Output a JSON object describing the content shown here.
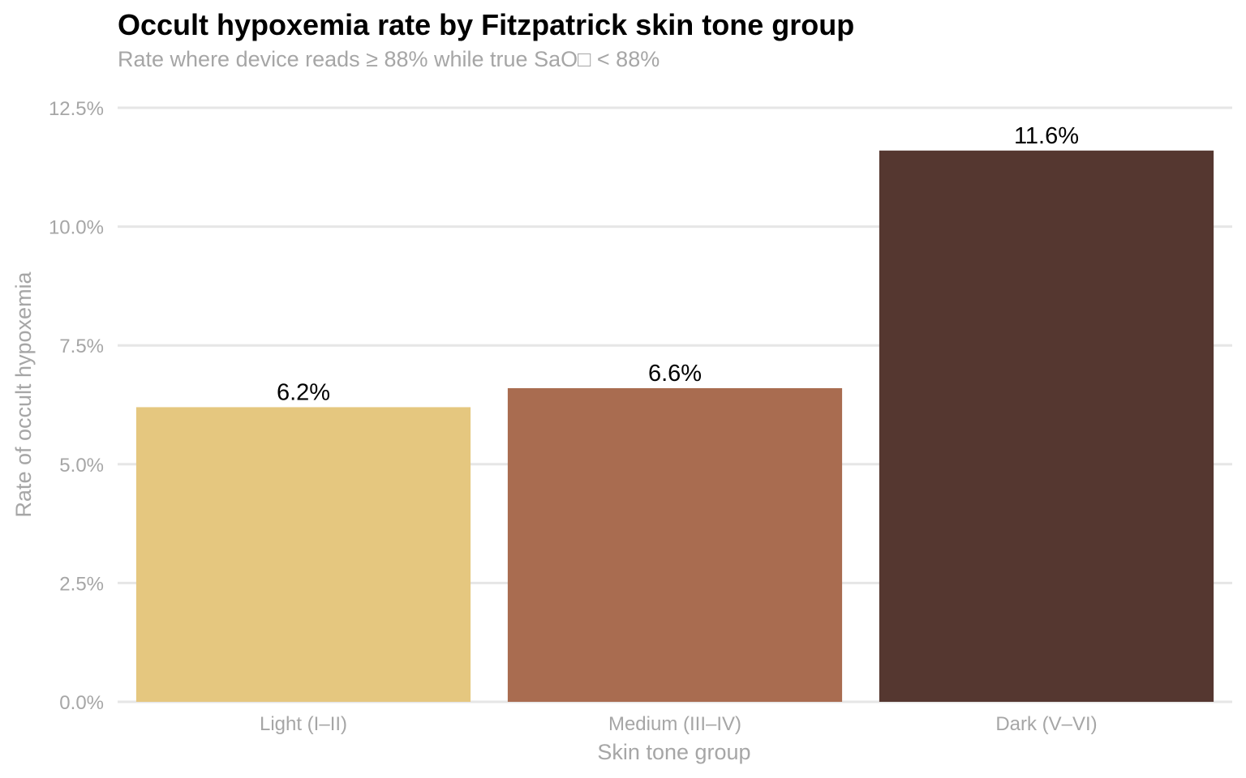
{
  "chart_data": {
    "type": "bar",
    "title": "Occult hypoxemia rate by Fitzpatrick skin tone group",
    "subtitle": "Rate where device reads ≥ 88% while true SaO□ < 88%",
    "xlabel": "Skin tone group",
    "ylabel": "Rate of occult hypoxemia",
    "categories": [
      "Light (I–II)",
      "Medium (III–IV)",
      "Dark (V–VI)"
    ],
    "values": [
      6.2,
      6.6,
      11.6
    ],
    "value_labels": [
      "6.2%",
      "6.6%",
      "11.6%"
    ],
    "ylim": [
      0,
      12.5
    ],
    "yticks": [
      0,
      2.5,
      5.0,
      7.5,
      10.0,
      12.5
    ],
    "ytick_labels": [
      "0.0%",
      "2.5%",
      "5.0%",
      "7.5%",
      "10.0%",
      "12.5%"
    ],
    "grid": "horizontal",
    "legend": "none",
    "colors": [
      "#e5c77f",
      "#a96c50",
      "#553730"
    ],
    "gridline_color": "#e6e6e6",
    "axis_text_color": "#a6a6a6",
    "label_text_color": "#000000"
  }
}
